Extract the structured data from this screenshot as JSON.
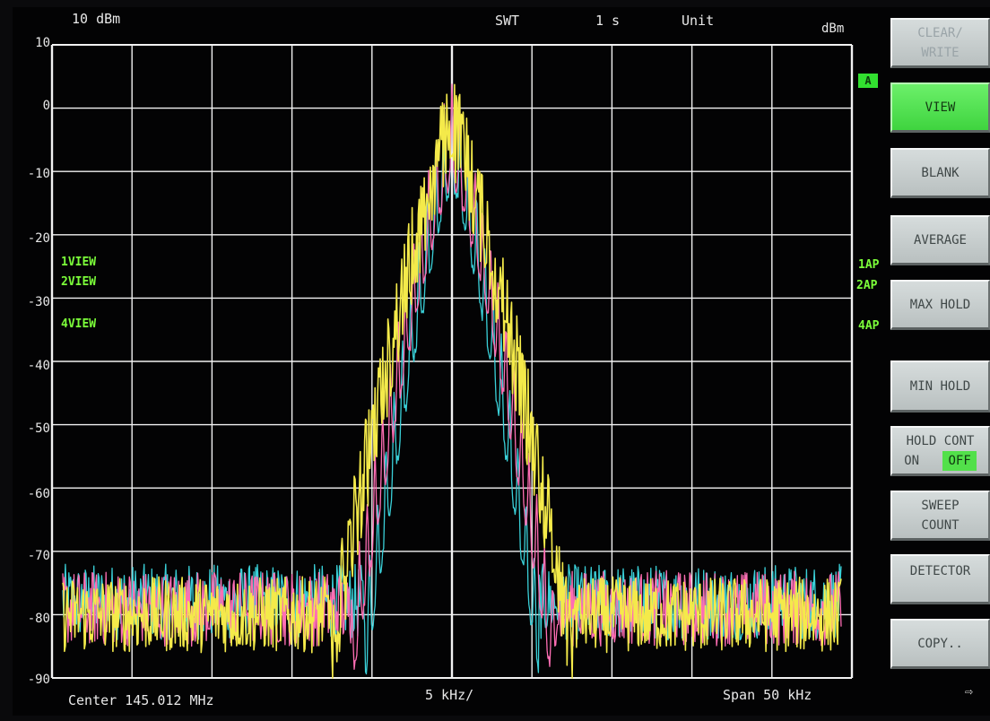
{
  "header": {
    "ref_level": "10 dBm",
    "swt_label": "SWT",
    "swt_value": "1 s",
    "unit_label": "Unit",
    "unit_value": "dBm"
  },
  "trace_labels": [
    "1VIEW",
    "2VIEW",
    "4VIEW"
  ],
  "ap_labels": [
    "1AP",
    "2AP",
    "4AP"
  ],
  "a_badge": "A",
  "footer": {
    "center": "Center 145.012 MHz",
    "scale": "5 kHz/",
    "span": "Span 50 kHz"
  },
  "softkeys": [
    {
      "label1": "CLEAR/",
      "label2": "WRITE",
      "state": "disabled"
    },
    {
      "label1": "VIEW",
      "label2": "",
      "state": "active"
    },
    {
      "label1": "BLANK",
      "label2": "",
      "state": "normal"
    },
    {
      "label1": "AVERAGE",
      "label2": "",
      "state": "normal"
    },
    {
      "label1": "MAX HOLD",
      "label2": "",
      "state": "normal"
    },
    {
      "label1": "MIN HOLD",
      "label2": "",
      "state": "normal"
    },
    {
      "label1": "HOLD CONT",
      "label2_on": "ON",
      "label2_off": "OFF",
      "state": "normal"
    },
    {
      "label1": "SWEEP",
      "label2": "COUNT",
      "state": "normal"
    },
    {
      "label1": "DETECTOR",
      "label2": "",
      "state": "normal"
    },
    {
      "label1": "COPY..",
      "label2": "",
      "state": "normal"
    }
  ],
  "colors": {
    "grid": "#f2f2f2",
    "trace1": "#3ad0d8",
    "trace2": "#ff6eb4",
    "trace4": "#f4ea4a",
    "annotation_green": "#7cff3a"
  },
  "chart_data": {
    "type": "line",
    "y_ticks": [
      "10",
      "0",
      "-10",
      "-20",
      "-30",
      "-40",
      "-50",
      "-60",
      "-70",
      "-80",
      "-90"
    ],
    "ylim": [
      -90,
      10
    ],
    "x_center_mhz": 145.012,
    "x_span_khz": 50,
    "x_div_khz": 5,
    "series": [
      {
        "name": "1VIEW",
        "color": "#3ad0d8",
        "peak_dbm": 2,
        "noise_floor_dbm": -78,
        "sidebands": true
      },
      {
        "name": "2VIEW",
        "color": "#ff6eb4",
        "peak_dbm": 3,
        "noise_floor_dbm": -79,
        "sidebands": true
      },
      {
        "name": "4VIEW",
        "color": "#f4ea4a",
        "peak_dbm": 5,
        "noise_floor_dbm": -80,
        "sidebands": false
      }
    ]
  }
}
